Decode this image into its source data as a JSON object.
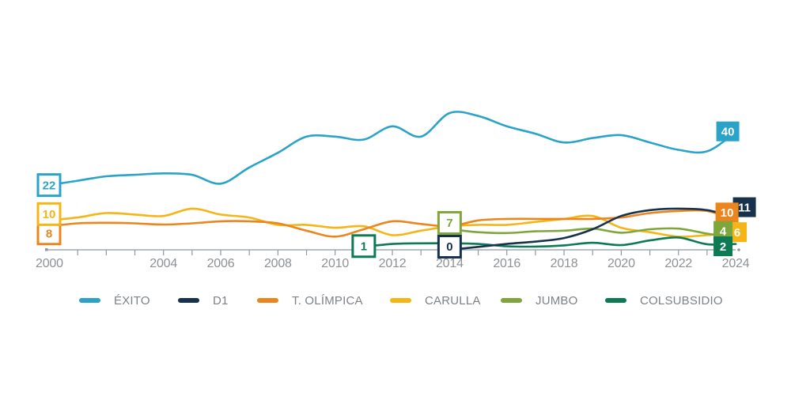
{
  "chart_data": {
    "type": "line",
    "title": "",
    "x_axis": {
      "min_year": 2000,
      "max_year": 2024,
      "tick_every_years": 1,
      "label_years": [
        2000,
        2004,
        2006,
        2008,
        2010,
        2012,
        2014,
        2016,
        2018,
        2020,
        2022,
        2024
      ]
    },
    "y_axis": {
      "visible": false,
      "baseline_value": 0,
      "approx_max": 47
    },
    "grid": "off",
    "legend_position": "bottom",
    "series": [
      {
        "name": "ÉXITO",
        "color": "#2BA3C9",
        "start_year": 2000,
        "end_year": 2024,
        "start_label": "22",
        "end_label": "40",
        "years": [
          2000,
          2001,
          2002,
          2003,
          2004,
          2005,
          2006,
          2007,
          2008,
          2009,
          2010,
          2011,
          2012,
          2013,
          2014,
          2015,
          2016,
          2017,
          2018,
          2019,
          2020,
          2021,
          2022,
          2023,
          2024
        ],
        "values": [
          22,
          23.5,
          25,
          25.5,
          26,
          25.5,
          22.5,
          28,
          33,
          38.5,
          38.5,
          37.5,
          42,
          38.5,
          46.5,
          45.5,
          42,
          39.5,
          36.5,
          38,
          39,
          36.5,
          34,
          33.5,
          40
        ]
      },
      {
        "name": "D1",
        "color": "#17324C",
        "start_year": 2014,
        "end_year": 2024,
        "start_label": "0",
        "end_label": "11",
        "years": [
          2014,
          2015,
          2016,
          2017,
          2018,
          2019,
          2020,
          2021,
          2022,
          2023,
          2024
        ],
        "values": [
          0,
          1,
          2,
          2.8,
          4,
          7,
          11.5,
          13.5,
          14,
          13.5,
          11
        ]
      },
      {
        "name": "T. OLÍMPICA",
        "color": "#EA861D",
        "start_year": 2000,
        "end_year": 2024,
        "start_label": "8",
        "end_label": "10",
        "years": [
          2000,
          2001,
          2002,
          2003,
          2004,
          2005,
          2006,
          2007,
          2008,
          2009,
          2010,
          2011,
          2012,
          2013,
          2014,
          2015,
          2016,
          2017,
          2018,
          2019,
          2020,
          2021,
          2022,
          2023,
          2024
        ],
        "values": [
          8,
          9,
          9.2,
          9,
          8.6,
          9,
          9.7,
          9.7,
          9,
          6.5,
          4.5,
          7,
          9.7,
          8.8,
          8,
          10,
          10.5,
          10.5,
          10.5,
          10.5,
          11,
          12.5,
          13.2,
          13.2,
          10
        ]
      },
      {
        "name": "CARULLA",
        "color": "#F5B517",
        "start_year": 2000,
        "end_year": 2024,
        "start_label": "10",
        "end_label": "6",
        "years": [
          2000,
          2001,
          2002,
          2003,
          2004,
          2005,
          2006,
          2007,
          2008,
          2009,
          2010,
          2011,
          2012,
          2013,
          2014,
          2015,
          2016,
          2017,
          2018,
          2019,
          2020,
          2021,
          2022,
          2023,
          2024
        ],
        "values": [
          10,
          11,
          12.5,
          12,
          11.5,
          14,
          12,
          11,
          8.5,
          8.5,
          7.5,
          8,
          5,
          6.5,
          8,
          8.5,
          8.5,
          9.5,
          10.5,
          11.5,
          7.5,
          6,
          4.5,
          5,
          6
        ]
      },
      {
        "name": "JUMBO",
        "color": "#7FA63C",
        "start_year": 2014,
        "end_year": 2024,
        "start_label": "7",
        "end_label": "4",
        "years": [
          2014,
          2015,
          2016,
          2017,
          2018,
          2019,
          2020,
          2021,
          2022,
          2023,
          2024
        ],
        "values": [
          7,
          6,
          5.7,
          6.3,
          6.5,
          7.2,
          5.8,
          7,
          7.2,
          5.5,
          4
        ]
      },
      {
        "name": "COLSUBSIDIO",
        "color": "#0D7A54",
        "start_year": 2011,
        "end_year": 2024,
        "start_label": "1",
        "end_label": "2",
        "years": [
          2011,
          2012,
          2013,
          2014,
          2015,
          2016,
          2017,
          2018,
          2019,
          2020,
          2021,
          2022,
          2023,
          2024
        ],
        "values": [
          1,
          2,
          2.2,
          2.2,
          2,
          1.2,
          1.1,
          1.5,
          2.4,
          1.6,
          3.2,
          4.2,
          1.9,
          2
        ]
      }
    ]
  },
  "legend": {
    "labels": [
      "ÉXITO",
      "D1",
      "T. OLÍMPICA",
      "CARULLA",
      "JUMBO",
      "COLSUBSIDIO"
    ]
  },
  "colors": {
    "background": "#FFFFFF",
    "axis": "#8C99A3",
    "axis_label": "#8D9196",
    "legend_label": "#7D8287"
  }
}
